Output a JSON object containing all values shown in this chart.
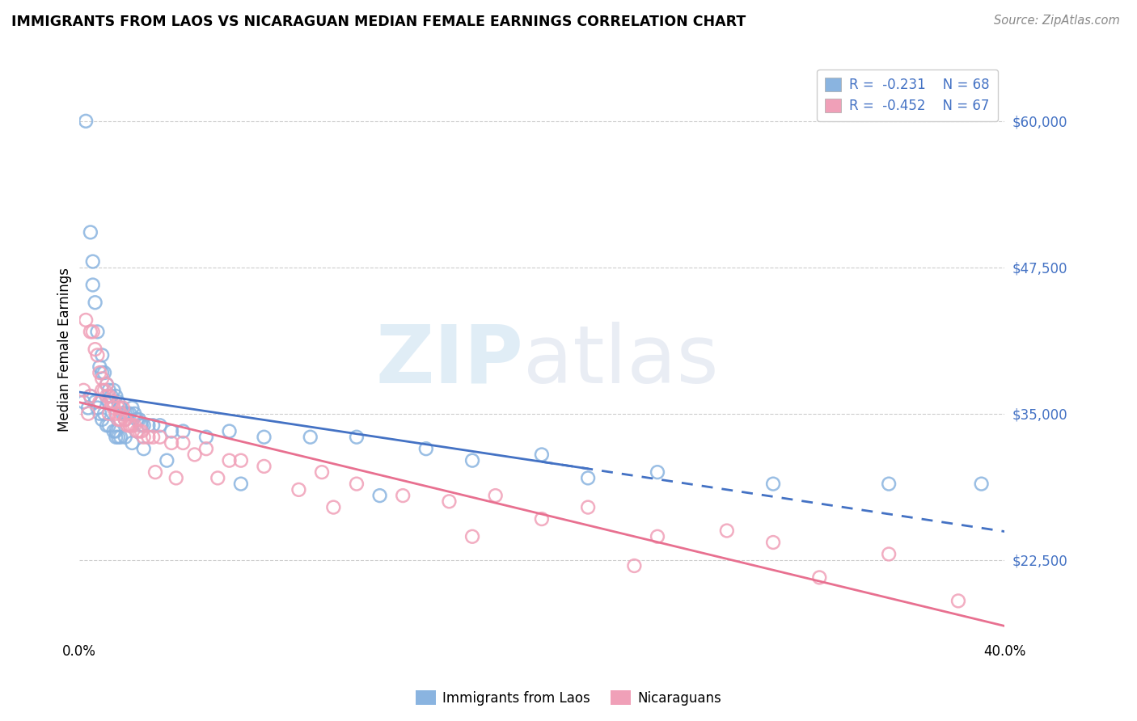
{
  "title": "IMMIGRANTS FROM LAOS VS NICARAGUAN MEDIAN FEMALE EARNINGS CORRELATION CHART",
  "source": "Source: ZipAtlas.com",
  "ylabel": "Median Female Earnings",
  "yticks": [
    22500,
    35000,
    47500,
    60000
  ],
  "ytick_labels": [
    "$22,500",
    "$35,000",
    "$47,500",
    "$60,000"
  ],
  "xlim": [
    0.0,
    40.0
  ],
  "ylim": [
    16000,
    65000
  ],
  "legend_labels": [
    "Immigrants from Laos",
    "Nicaraguans"
  ],
  "blue_color": "#8ab4e0",
  "pink_color": "#f0a0b8",
  "blue_line_color": "#4472c4",
  "pink_line_color": "#e87090",
  "blue_R": -0.231,
  "blue_N": 68,
  "pink_R": -0.452,
  "pink_N": 67,
  "watermark_zip": "ZIP",
  "watermark_atlas": "atlas",
  "blue_scatter_x": [
    0.2,
    0.3,
    0.4,
    0.5,
    0.5,
    0.6,
    0.7,
    0.7,
    0.8,
    0.8,
    0.9,
    0.9,
    1.0,
    1.0,
    1.1,
    1.1,
    1.2,
    1.2,
    1.3,
    1.3,
    1.4,
    1.5,
    1.5,
    1.6,
    1.6,
    1.7,
    1.7,
    1.8,
    1.8,
    1.9,
    2.0,
    2.0,
    2.1,
    2.2,
    2.3,
    2.4,
    2.5,
    2.6,
    2.7,
    2.8,
    3.0,
    3.2,
    3.5,
    4.0,
    4.5,
    5.5,
    6.5,
    8.0,
    10.0,
    12.0,
    15.0,
    17.0,
    20.0,
    25.0,
    30.0,
    35.0,
    39.0,
    0.6,
    1.0,
    1.3,
    1.6,
    2.0,
    2.3,
    2.8,
    3.8,
    7.0,
    13.0,
    22.0
  ],
  "blue_scatter_y": [
    36000,
    60000,
    35500,
    50500,
    36500,
    46000,
    36000,
    44500,
    42000,
    35500,
    39000,
    35000,
    38500,
    34500,
    38500,
    35000,
    37500,
    34000,
    37000,
    34000,
    36500,
    37000,
    33500,
    36500,
    33500,
    36000,
    33000,
    35500,
    33000,
    35000,
    35000,
    33000,
    35000,
    35000,
    35500,
    35000,
    34500,
    34500,
    34000,
    34000,
    34000,
    34000,
    34000,
    33500,
    33500,
    33000,
    33500,
    33000,
    33000,
    33000,
    32000,
    31000,
    31500,
    30000,
    29000,
    29000,
    29000,
    48000,
    40000,
    36000,
    33000,
    34500,
    32500,
    32000,
    31000,
    29000,
    28000,
    29500
  ],
  "pink_scatter_x": [
    0.2,
    0.3,
    0.4,
    0.5,
    0.6,
    0.7,
    0.8,
    0.9,
    1.0,
    1.0,
    1.1,
    1.2,
    1.2,
    1.3,
    1.4,
    1.5,
    1.5,
    1.6,
    1.7,
    1.8,
    1.8,
    1.9,
    2.0,
    2.0,
    2.1,
    2.2,
    2.3,
    2.4,
    2.5,
    2.6,
    2.8,
    3.0,
    3.2,
    3.5,
    4.0,
    4.5,
    5.0,
    5.5,
    6.5,
    7.0,
    8.0,
    9.5,
    10.5,
    12.0,
    14.0,
    16.0,
    18.0,
    20.0,
    22.0,
    25.0,
    28.0,
    30.0,
    35.0,
    38.0,
    0.5,
    0.9,
    1.3,
    1.7,
    2.2,
    2.7,
    3.3,
    4.2,
    6.0,
    11.0,
    17.0,
    24.0,
    32.0
  ],
  "pink_scatter_y": [
    37000,
    43000,
    35000,
    42000,
    42000,
    40500,
    40000,
    38500,
    38000,
    37000,
    37000,
    37500,
    36500,
    36500,
    36000,
    35500,
    36000,
    35000,
    35500,
    35000,
    34500,
    35500,
    34500,
    34500,
    34000,
    34000,
    34000,
    34000,
    33500,
    33500,
    33000,
    33000,
    33000,
    33000,
    32500,
    32500,
    31500,
    32000,
    31000,
    31000,
    30500,
    28500,
    30000,
    29000,
    28000,
    27500,
    28000,
    26000,
    27000,
    24500,
    25000,
    24000,
    23000,
    19000,
    36500,
    36000,
    35000,
    34500,
    34000,
    33500,
    30000,
    29500,
    29500,
    27000,
    24500,
    22000,
    21000
  ]
}
